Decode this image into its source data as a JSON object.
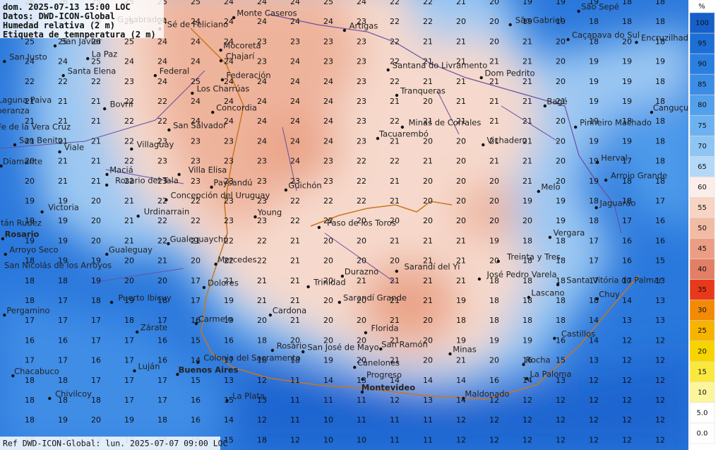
{
  "header": {
    "lines": [
      "dom. 2025-07-13 15:00 LOC",
      "Datos: DWD-ICON-Global",
      "Humedad relativa (2 m)",
      "Etiqueta de temnperatura (2 m)"
    ]
  },
  "footer": "Ref DWD-ICON-Global: lun. 2025-07-07 09:00 LOC",
  "legend": {
    "title": "%",
    "ticks": [
      100,
      95,
      90,
      85,
      80,
      75,
      70,
      65,
      60,
      55,
      50,
      45,
      40,
      35,
      30,
      25,
      20,
      15,
      10,
      {
        "value": 5,
        "label": "5.0"
      },
      {
        "value": 0,
        "label": "0.0"
      }
    ],
    "colors": [
      "#1660c8",
      "#1c6fd6",
      "#2b7fe0",
      "#3c8de6",
      "#53a0ec",
      "#6db2f0",
      "#8fc5f4",
      "#b4d8f7",
      "#fbeeea",
      "#f7d4c4",
      "#f2bba3",
      "#eb9e84",
      "#e27f66",
      "#e8391a",
      "#f28a05",
      "#f6b400",
      "#f7d300",
      "#fbe83e",
      "#fdf59c",
      "#ffffff",
      "#ffffff"
    ]
  },
  "places": [
    "G. Labrador",
    "Monte Caseros",
    "Sé de Feliciano",
    "Artigas",
    "São Sepé",
    "São Gabriel",
    "Caçapava do Sul",
    "Encruzilhada",
    "San Javier",
    "La Paz",
    "Mocoretá",
    "Chajarí",
    "San Justo",
    "Santa Elena",
    "Federal",
    "Federación",
    "Santana do Livramento",
    "Dom Pedrito",
    "Los Charrúas",
    "Tranqueras",
    "Laguna Paiva",
    "Bovril",
    "Concordia",
    "Bagé",
    "Canguçu",
    "Esperanza",
    "Minas de Corrales",
    "Pinheiro Machado",
    "San Salvador",
    "Fe de la Vera Cruz",
    "Tacuarembó",
    "Vichadero",
    "San Benito",
    "Viale",
    "Villaguay",
    "Diamante",
    "Herval",
    "Maciá",
    "Villa Elisa",
    "Arroio Grande",
    "Rosario del Tala",
    "Paysandú",
    "Guichón",
    "Melo",
    "Concepción del Uruguay",
    "Jaguarão",
    "Victoria",
    "Urdinarrain",
    "Young",
    "Paso de los Toros",
    "tán Rudez",
    "Vergara",
    "Rosario",
    "Gualeguaychú",
    "Arroyo Seco",
    "Gualeguay",
    "Treinta y Tres",
    "Mercedes",
    "San Nicolás de los Arroyos",
    "Sarandí del Yí",
    "Durazno",
    "José Pedro Varela",
    "Santa Vitória do Palmar",
    "Dolores",
    "Trinidad",
    "Lascano",
    "Chuy",
    "Puerto Ibicuy",
    "Sarandí Grande",
    "Cardona",
    "Pergamino",
    "Carmelo",
    "Florida",
    "Zárate",
    "Castillos",
    "Rosario",
    "San José de Mayo",
    "San Ramón",
    "Minas",
    "Colonia del Sacramento",
    "Rocha",
    "Canelones",
    "Chacabuco",
    "Luján",
    "Buenos Aires",
    "La Paloma",
    "Progreso",
    "Montevideo",
    "Chivilcoy",
    "Maldonado",
    "La Plata"
  ],
  "grid": {
    "rows": [
      [
        26,
        26,
        25,
        25,
        25,
        25,
        24,
        24,
        24,
        25,
        24,
        22,
        22,
        21,
        20,
        19,
        19,
        19,
        18,
        18
      ],
      [
        25,
        25,
        26,
        25,
        24,
        24,
        24,
        24,
        24,
        24,
        23,
        22,
        22,
        20,
        20,
        19,
        19,
        18,
        18,
        18
      ],
      [
        25,
        25,
        26,
        25,
        24,
        24,
        24,
        23,
        23,
        23,
        23,
        22,
        21,
        21,
        20,
        21,
        20,
        18,
        20,
        18
      ],
      [
        24,
        24,
        25,
        24,
        24,
        24,
        24,
        23,
        24,
        23,
        23,
        22,
        21,
        21,
        21,
        21,
        20,
        19,
        19,
        19
      ],
      [
        22,
        22,
        22,
        23,
        24,
        25,
        24,
        24,
        24,
        24,
        23,
        22,
        21,
        21,
        21,
        21,
        20,
        19,
        19,
        18
      ],
      [
        21,
        21,
        21,
        22,
        22,
        24,
        24,
        24,
        24,
        24,
        23,
        21,
        20,
        21,
        21,
        21,
        21,
        19,
        19,
        18
      ],
      [
        21,
        21,
        21,
        22,
        22,
        24,
        24,
        24,
        24,
        24,
        23,
        22,
        21,
        21,
        21,
        21,
        20,
        19,
        18,
        18
      ],
      [
        21,
        21,
        21,
        22,
        23,
        23,
        23,
        24,
        24,
        24,
        23,
        21,
        20,
        20,
        21,
        21,
        20,
        19,
        19,
        18
      ],
      [
        20,
        21,
        21,
        22,
        23,
        23,
        23,
        23,
        24,
        23,
        22,
        22,
        21,
        20,
        21,
        21,
        20,
        19,
        17,
        18
      ],
      [
        20,
        21,
        21,
        22,
        23,
        23,
        23,
        23,
        23,
        23,
        22,
        21,
        20,
        20,
        20,
        21,
        20,
        19,
        18,
        18
      ],
      [
        19,
        19,
        20,
        21,
        22,
        22,
        23,
        23,
        22,
        22,
        22,
        21,
        20,
        20,
        20,
        19,
        19,
        18,
        18,
        17
      ],
      [
        19,
        19,
        20,
        21,
        22,
        22,
        23,
        23,
        22,
        22,
        20,
        20,
        20,
        20,
        20,
        20,
        19,
        18,
        17,
        16
      ],
      [
        19,
        19,
        20,
        21,
        22,
        21,
        22,
        22,
        21,
        20,
        20,
        21,
        21,
        21,
        19,
        18,
        18,
        17,
        16,
        16
      ],
      [
        18,
        19,
        19,
        20,
        21,
        20,
        22,
        22,
        21,
        20,
        20,
        20,
        21,
        21,
        20,
        18,
        18,
        17,
        16,
        15
      ],
      [
        18,
        18,
        19,
        20,
        20,
        17,
        21,
        21,
        21,
        20,
        21,
        21,
        21,
        21,
        18,
        18,
        18,
        17,
        17,
        13
      ],
      [
        18,
        17,
        18,
        19,
        18,
        17,
        19,
        21,
        21,
        20,
        20,
        21,
        21,
        19,
        18,
        18,
        18,
        18,
        14,
        13
      ],
      [
        17,
        17,
        17,
        18,
        17,
        16,
        19,
        20,
        21,
        20,
        20,
        21,
        20,
        18,
        18,
        18,
        18,
        14,
        13,
        13
      ],
      [
        16,
        16,
        17,
        17,
        16,
        15,
        16,
        18,
        20,
        20,
        20,
        21,
        20,
        19,
        19,
        19,
        16,
        14,
        12,
        12
      ],
      [
        17,
        17,
        16,
        17,
        16,
        14,
        17,
        18,
        18,
        19,
        20,
        21,
        20,
        21,
        20,
        16,
        15,
        13,
        12,
        12
      ],
      [
        18,
        18,
        17,
        17,
        17,
        15,
        13,
        12,
        11,
        14,
        13,
        14,
        14,
        14,
        16,
        14,
        13,
        12,
        12,
        12
      ],
      [
        18,
        18,
        18,
        17,
        17,
        16,
        15,
        13,
        11,
        11,
        11,
        12,
        13,
        14,
        12,
        12,
        12,
        12,
        12,
        12
      ],
      [
        18,
        19,
        20,
        19,
        18,
        16,
        14,
        12,
        11,
        10,
        11,
        11,
        11,
        12,
        12,
        12,
        12,
        12,
        12,
        12
      ],
      [
        18,
        19,
        19,
        19,
        18,
        16,
        15,
        18,
        12,
        10,
        10,
        11,
        11,
        12,
        12,
        12,
        12,
        12,
        12,
        12
      ]
    ]
  }
}
